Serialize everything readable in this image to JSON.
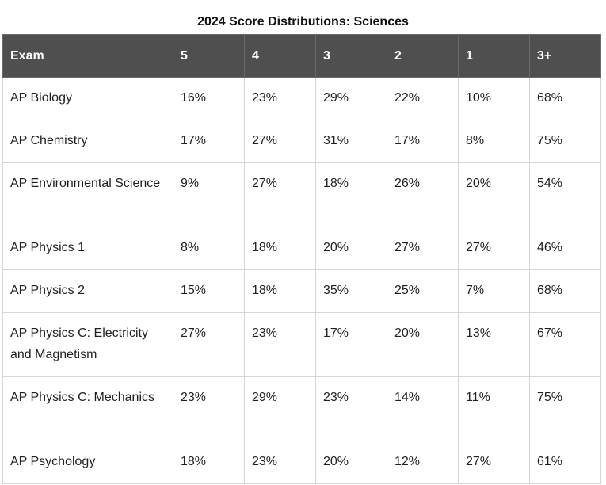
{
  "title": "2024 Score Distributions: Sciences",
  "table": {
    "headers": [
      "Exam",
      "5",
      "4",
      "3",
      "2",
      "1",
      "3+"
    ],
    "rows": [
      {
        "exam": "AP Biology",
        "values": [
          "16%",
          "23%",
          "29%",
          "22%",
          "10%",
          "68%"
        ]
      },
      {
        "exam": "AP Chemistry",
        "values": [
          "17%",
          "27%",
          "31%",
          "17%",
          "8%",
          "75%"
        ]
      },
      {
        "exam": "AP Environmental Science",
        "values": [
          "9%",
          "27%",
          "18%",
          "26%",
          "20%",
          "54%"
        ]
      },
      {
        "exam": "AP Physics 1",
        "values": [
          "8%",
          "18%",
          "20%",
          "27%",
          "27%",
          "46%"
        ]
      },
      {
        "exam": "AP Physics 2",
        "values": [
          "15%",
          "18%",
          "35%",
          "25%",
          "7%",
          "68%"
        ]
      },
      {
        "exam": "AP Physics C: Electricity and Magnetism",
        "values": [
          "27%",
          "23%",
          "17%",
          "20%",
          "13%",
          "67%"
        ]
      },
      {
        "exam": "AP Physics C: Mechanics",
        "values": [
          "23%",
          "29%",
          "23%",
          "14%",
          "11%",
          "75%"
        ]
      },
      {
        "exam": "AP Psychology",
        "values": [
          "18%",
          "23%",
          "20%",
          "12%",
          "27%",
          "61%"
        ]
      }
    ]
  },
  "colors": {
    "header_bg": "#4f4f4f",
    "header_text": "#ffffff",
    "border": "#d6d6d6"
  }
}
